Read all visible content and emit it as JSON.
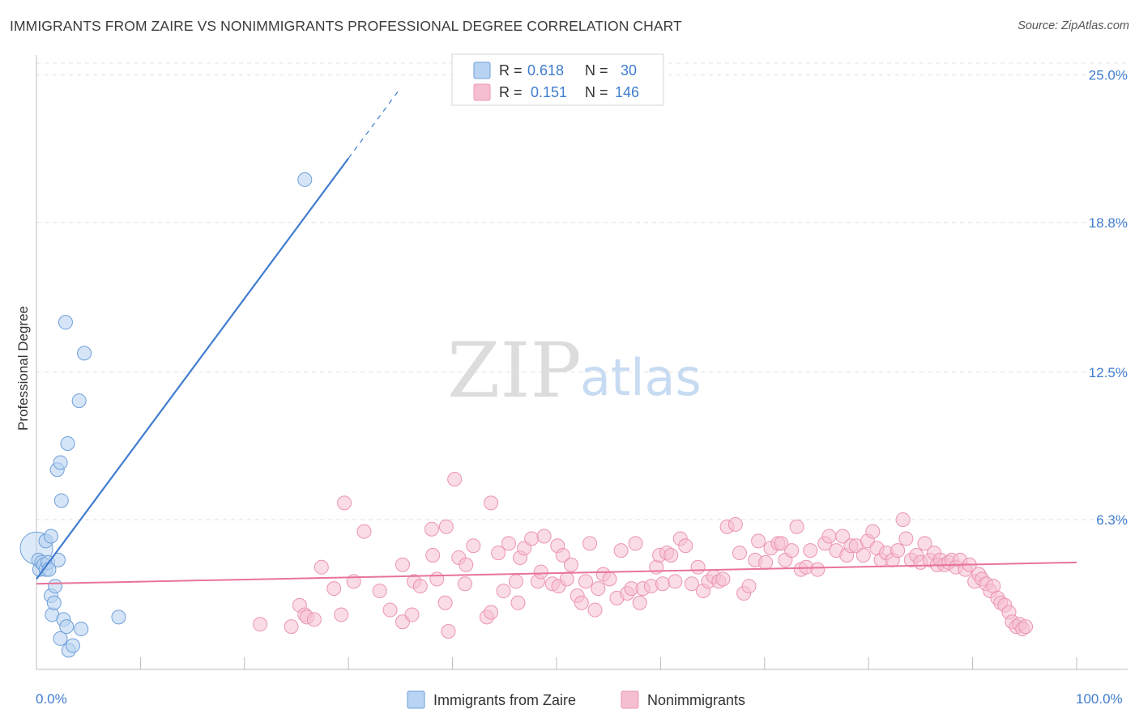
{
  "title": "IMMIGRANTS FROM ZAIRE VS NONIMMIGRANTS PROFESSIONAL DEGREE CORRELATION CHART",
  "source": "Source: ZipAtlas.com",
  "watermark": {
    "zip": "ZIP",
    "atlas": "atlas"
  },
  "colors": {
    "blue": "#3f7ccf",
    "blue_fill": "#b9d3f2",
    "blue_stroke": "#6e9fd9",
    "pink": "#e8739b",
    "pink_fill": "#f6bfd1",
    "pink_stroke": "#eb94b3",
    "grid": "#e2e2e2"
  },
  "legend": {
    "row1": {
      "r_label": "R =",
      "r_value": "0.618",
      "n_label": "N =",
      "n_value": "30"
    },
    "row2": {
      "r_label": "R =",
      "r_value": "0.151",
      "n_label": "N =",
      "n_value": "146"
    }
  },
  "bottom_legend": {
    "series1": "Immigrants from Zaire",
    "series2": "Nonimmigrants"
  },
  "chart_data": {
    "type": "scatter",
    "title": "IMMIGRANTS FROM ZAIRE VS NONIMMIGRANTS PROFESSIONAL DEGREE CORRELATION CHART",
    "xlabel": "",
    "ylabel": "Professional Degree",
    "xlim": [
      0,
      100
    ],
    "ylim": [
      0,
      25.5
    ],
    "x_tick_labels": [
      "0.0%",
      "100.0%"
    ],
    "y_ticks": [
      6.3,
      12.5,
      18.8,
      25.0
    ],
    "y_tick_labels": [
      "6.3%",
      "12.5%",
      "18.8%",
      "25.0%"
    ],
    "grid": true,
    "series": [
      {
        "name": "Immigrants from Zaire",
        "R": 0.618,
        "N": 30,
        "trend": {
          "x0": 0.0,
          "y0": 3.8,
          "x1": 30.0,
          "y1": 21.5,
          "dash_to_x": 35.0
        },
        "points": [
          [
            0.0,
            5.1
          ],
          [
            0.2,
            4.6
          ],
          [
            0.3,
            4.2
          ],
          [
            0.5,
            4.5
          ],
          [
            0.7,
            4.4
          ],
          [
            0.9,
            5.4
          ],
          [
            0.9,
            4.2
          ],
          [
            1.1,
            4.5
          ],
          [
            1.2,
            4.2
          ],
          [
            1.4,
            5.6
          ],
          [
            1.4,
            3.1
          ],
          [
            1.5,
            2.3
          ],
          [
            1.7,
            2.8
          ],
          [
            1.8,
            3.5
          ],
          [
            2.0,
            8.4
          ],
          [
            2.1,
            4.6
          ],
          [
            2.3,
            8.7
          ],
          [
            2.3,
            1.3
          ],
          [
            2.4,
            7.1
          ],
          [
            2.6,
            2.1
          ],
          [
            2.8,
            14.6
          ],
          [
            2.9,
            1.8
          ],
          [
            3.0,
            9.5
          ],
          [
            3.1,
            0.8
          ],
          [
            3.5,
            1.0
          ],
          [
            4.1,
            11.3
          ],
          [
            4.3,
            1.7
          ],
          [
            4.6,
            13.3
          ],
          [
            7.9,
            2.2
          ],
          [
            25.8,
            20.6
          ]
        ]
      },
      {
        "name": "Nonimmigrants",
        "R": 0.151,
        "N": 146,
        "trend": {
          "x0": 0.0,
          "y0": 3.6,
          "x1": 100.0,
          "y1": 4.5
        },
        "points": [
          [
            21.5,
            1.9
          ],
          [
            24.5,
            1.8
          ],
          [
            25.3,
            2.7
          ],
          [
            25.8,
            2.3
          ],
          [
            26.0,
            2.2
          ],
          [
            26.7,
            2.1
          ],
          [
            27.4,
            4.3
          ],
          [
            28.6,
            3.4
          ],
          [
            29.3,
            2.3
          ],
          [
            29.6,
            7.0
          ],
          [
            30.5,
            3.7
          ],
          [
            31.5,
            5.8
          ],
          [
            33.0,
            3.3
          ],
          [
            34.0,
            2.5
          ],
          [
            35.2,
            2.0
          ],
          [
            35.2,
            4.4
          ],
          [
            36.1,
            2.3
          ],
          [
            36.3,
            3.7
          ],
          [
            36.9,
            3.5
          ],
          [
            38.0,
            5.9
          ],
          [
            38.1,
            4.8
          ],
          [
            38.5,
            3.8
          ],
          [
            39.3,
            2.8
          ],
          [
            39.4,
            6.0
          ],
          [
            39.6,
            1.6
          ],
          [
            40.2,
            8.0
          ],
          [
            40.6,
            4.7
          ],
          [
            41.2,
            3.6
          ],
          [
            41.3,
            4.4
          ],
          [
            42.0,
            5.2
          ],
          [
            43.3,
            2.2
          ],
          [
            43.7,
            2.4
          ],
          [
            43.7,
            7.0
          ],
          [
            44.4,
            4.9
          ],
          [
            44.9,
            3.3
          ],
          [
            45.4,
            5.3
          ],
          [
            46.1,
            3.7
          ],
          [
            46.3,
            2.8
          ],
          [
            46.5,
            4.7
          ],
          [
            46.9,
            5.1
          ],
          [
            47.6,
            5.5
          ],
          [
            48.2,
            3.7
          ],
          [
            48.5,
            4.1
          ],
          [
            48.8,
            5.6
          ],
          [
            49.6,
            3.6
          ],
          [
            50.1,
            5.2
          ],
          [
            50.2,
            3.5
          ],
          [
            50.6,
            4.8
          ],
          [
            51.0,
            3.8
          ],
          [
            51.4,
            4.4
          ],
          [
            52.0,
            3.1
          ],
          [
            52.4,
            2.8
          ],
          [
            52.8,
            3.7
          ],
          [
            53.2,
            5.3
          ],
          [
            53.7,
            2.5
          ],
          [
            54.0,
            3.4
          ],
          [
            54.5,
            4.0
          ],
          [
            55.1,
            3.8
          ],
          [
            55.8,
            3.0
          ],
          [
            56.2,
            5.0
          ],
          [
            56.8,
            3.2
          ],
          [
            57.2,
            3.4
          ],
          [
            57.6,
            5.3
          ],
          [
            58.0,
            2.8
          ],
          [
            58.3,
            3.4
          ],
          [
            59.1,
            3.5
          ],
          [
            59.6,
            4.3
          ],
          [
            59.9,
            4.8
          ],
          [
            60.2,
            3.6
          ],
          [
            60.6,
            4.9
          ],
          [
            61.0,
            4.8
          ],
          [
            61.4,
            3.7
          ],
          [
            61.9,
            5.5
          ],
          [
            62.4,
            5.2
          ],
          [
            63.0,
            3.6
          ],
          [
            63.6,
            4.3
          ],
          [
            64.1,
            3.3
          ],
          [
            64.6,
            3.7
          ],
          [
            65.1,
            3.9
          ],
          [
            65.6,
            3.7
          ],
          [
            66.0,
            3.8
          ],
          [
            66.4,
            6.0
          ],
          [
            67.2,
            6.1
          ],
          [
            67.6,
            4.9
          ],
          [
            68.0,
            3.2
          ],
          [
            68.5,
            3.5
          ],
          [
            69.1,
            4.6
          ],
          [
            69.4,
            5.4
          ],
          [
            70.1,
            4.5
          ],
          [
            70.6,
            5.1
          ],
          [
            71.3,
            5.3
          ],
          [
            71.6,
            5.3
          ],
          [
            72.0,
            4.6
          ],
          [
            72.6,
            5.0
          ],
          [
            73.1,
            6.0
          ],
          [
            73.5,
            4.2
          ],
          [
            74.0,
            4.3
          ],
          [
            74.4,
            5.0
          ],
          [
            75.1,
            4.2
          ],
          [
            75.8,
            5.3
          ],
          [
            76.2,
            5.6
          ],
          [
            76.9,
            5.0
          ],
          [
            77.5,
            5.6
          ],
          [
            77.9,
            4.8
          ],
          [
            78.3,
            5.2
          ],
          [
            78.8,
            5.2
          ],
          [
            79.5,
            4.8
          ],
          [
            79.9,
            5.4
          ],
          [
            80.4,
            5.8
          ],
          [
            80.8,
            5.1
          ],
          [
            81.2,
            4.6
          ],
          [
            81.7,
            4.9
          ],
          [
            82.3,
            4.6
          ],
          [
            82.8,
            5.0
          ],
          [
            83.3,
            6.3
          ],
          [
            83.6,
            5.5
          ],
          [
            84.1,
            4.6
          ],
          [
            84.6,
            4.8
          ],
          [
            85.0,
            4.5
          ],
          [
            85.4,
            5.3
          ],
          [
            85.9,
            4.6
          ],
          [
            86.3,
            4.9
          ],
          [
            86.6,
            4.4
          ],
          [
            86.9,
            4.6
          ],
          [
            87.3,
            4.4
          ],
          [
            87.7,
            4.5
          ],
          [
            88.0,
            4.6
          ],
          [
            88.4,
            4.3
          ],
          [
            88.8,
            4.6
          ],
          [
            89.3,
            4.2
          ],
          [
            89.7,
            4.4
          ],
          [
            90.2,
            3.7
          ],
          [
            90.6,
            4.0
          ],
          [
            90.9,
            3.8
          ],
          [
            91.3,
            3.6
          ],
          [
            91.7,
            3.3
          ],
          [
            92.0,
            3.5
          ],
          [
            92.4,
            3.0
          ],
          [
            92.7,
            2.8
          ],
          [
            93.1,
            2.7
          ],
          [
            93.5,
            2.4
          ],
          [
            93.8,
            2.0
          ],
          [
            94.2,
            1.8
          ],
          [
            94.5,
            1.9
          ],
          [
            94.8,
            1.7
          ],
          [
            95.1,
            1.8
          ]
        ]
      }
    ]
  }
}
